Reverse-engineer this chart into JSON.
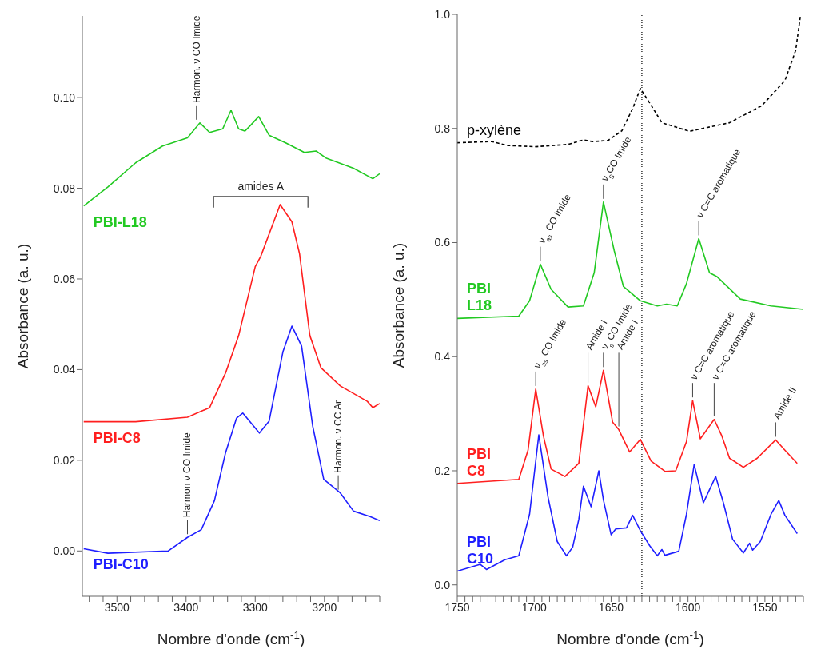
{
  "chart_data": [
    {
      "type": "line",
      "xlabel": "Nombre d'onde (cm$^{-1}$)",
      "ylabel": "Absorbance (a. u.)",
      "xlim": [
        3550,
        3120
      ],
      "ylim": [
        -0.01,
        0.118
      ],
      "marker": "none",
      "xticks": [
        {
          "value": 3540,
          "label": null
        },
        {
          "value": 3520,
          "label": null
        },
        3500,
        {
          "value": 3480,
          "label": null
        },
        {
          "value": 3460,
          "label": null
        },
        {
          "value": 3440,
          "label": null
        },
        {
          "value": 3420,
          "label": null
        },
        3400,
        {
          "value": 3380,
          "label": null
        },
        {
          "value": 3360,
          "label": null
        },
        {
          "value": 3340,
          "label": null
        },
        {
          "value": 3320,
          "label": null
        },
        3300,
        {
          "value": 3280,
          "label": null
        },
        {
          "value": 3260,
          "label": null
        },
        {
          "value": 3240,
          "label": null
        },
        {
          "value": 3220,
          "label": null
        },
        3200,
        {
          "value": 3180,
          "label": null
        },
        {
          "value": 3160,
          "label": null
        },
        {
          "value": 3140,
          "label": null
        },
        {
          "value": 3120,
          "label": null
        }
      ],
      "yticks": [
        {
          "value": 0,
          "label": "0.00"
        },
        {
          "value": 0.02,
          "label": "0.02"
        },
        {
          "value": 0.04,
          "label": "0.04"
        },
        {
          "value": 0.06,
          "label": "0.06"
        },
        {
          "value": 0.08,
          "label": "0.08"
        },
        {
          "value": 0.1,
          "label": "0.10"
        }
      ],
      "series": [
        {
          "name": "PBI-L18",
          "color": "#22c922",
          "x": [
            3548,
            3513,
            3473,
            3434,
            3398,
            3380,
            3366,
            3347,
            3335,
            3324,
            3315,
            3306,
            3295,
            3280,
            3256,
            3229,
            3212,
            3197,
            3158,
            3130,
            3120
          ],
          "values": [
            0.0761,
            0.0803,
            0.0856,
            0.0893,
            0.0911,
            0.0944,
            0.0923,
            0.0931,
            0.0972,
            0.0931,
            0.0926,
            0.094,
            0.0958,
            0.0917,
            0.09,
            0.0879,
            0.0882,
            0.0866,
            0.0844,
            0.0821,
            0.0832
          ]
        },
        {
          "name": "PBI-C8",
          "color": "#ff1f1f",
          "x": [
            3548,
            3473,
            3398,
            3366,
            3343,
            3324,
            3300,
            3292,
            3264,
            3247,
            3236,
            3221,
            3205,
            3177,
            3138,
            3130,
            3120
          ],
          "values": [
            0.0285,
            0.0285,
            0.0295,
            0.0316,
            0.0392,
            0.0475,
            0.0627,
            0.065,
            0.0764,
            0.0726,
            0.0656,
            0.0475,
            0.0404,
            0.0364,
            0.033,
            0.0316,
            0.0325
          ]
        },
        {
          "name": "PBI-C10",
          "color": "#1f1fff",
          "x": [
            3548,
            3513,
            3426,
            3398,
            3378,
            3359,
            3343,
            3327,
            3318,
            3294,
            3280,
            3260,
            3247,
            3233,
            3217,
            3201,
            3177,
            3158,
            3134,
            3120
          ],
          "values": [
            0.0005,
            -0.0005,
            0,
            0.003,
            0.0047,
            0.0111,
            0.0216,
            0.0293,
            0.0304,
            0.026,
            0.0286,
            0.0439,
            0.0496,
            0.0452,
            0.0276,
            0.0158,
            0.0128,
            0.0088,
            0.0076,
            0.0067
          ]
        }
      ],
      "annotations": [
        {
          "text": "Harmon. ν CO Imide",
          "x": 3385,
          "y": 0.0944
        },
        "amides A",
        {
          "text": "Harmon ν CO Imide",
          "x": 3398,
          "y": 0.003
        },
        {
          "text": "Harmon. ν CC Ar",
          "x": 3180,
          "y": 0.0128
        }
      ]
    },
    {
      "type": "line",
      "xlabel": "Nombre d'onde (cm$^{-1}$)",
      "ylabel": "Absorbance (a. u.)",
      "xlim": [
        1750,
        1525
      ],
      "ylim": [
        -0.02,
        1.0
      ],
      "marker": "none",
      "xticks": [
        1750,
        {
          "value": 1745,
          "label": null
        },
        {
          "value": 1740,
          "label": null
        },
        {
          "value": 1735,
          "label": null
        },
        {
          "value": 1730,
          "label": null
        },
        {
          "value": 1725,
          "label": null
        },
        {
          "value": 1720,
          "label": null
        },
        {
          "value": 1715,
          "label": null
        },
        {
          "value": 1710,
          "label": null
        },
        {
          "value": 1705,
          "label": null
        },
        1700,
        {
          "value": 1695,
          "label": null
        },
        {
          "value": 1690,
          "label": null
        },
        {
          "value": 1685,
          "label": null
        },
        {
          "value": 1680,
          "label": null
        },
        {
          "value": 1675,
          "label": null
        },
        {
          "value": 1670,
          "label": null
        },
        {
          "value": 1665,
          "label": null
        },
        {
          "value": 1660,
          "label": null
        },
        {
          "value": 1655,
          "label": null
        },
        1650,
        {
          "value": 1645,
          "label": null
        },
        {
          "value": 1640,
          "label": null
        },
        {
          "value": 1635,
          "label": null
        },
        {
          "value": 1630,
          "label": null
        },
        {
          "value": 1625,
          "label": null
        },
        {
          "value": 1620,
          "label": null
        },
        {
          "value": 1615,
          "label": null
        },
        {
          "value": 1610,
          "label": null
        },
        {
          "value": 1605,
          "label": null
        },
        1600,
        {
          "value": 1595,
          "label": null
        },
        {
          "value": 1590,
          "label": null
        },
        {
          "value": 1585,
          "label": null
        },
        {
          "value": 1580,
          "label": null
        },
        {
          "value": 1575,
          "label": null
        },
        {
          "value": 1570,
          "label": null
        },
        {
          "value": 1565,
          "label": null
        },
        {
          "value": 1560,
          "label": null
        },
        {
          "value": 1555,
          "label": null
        },
        1550,
        {
          "value": 1545,
          "label": null
        },
        {
          "value": 1540,
          "label": null
        },
        {
          "value": 1535,
          "label": null
        },
        {
          "value": 1530,
          "label": null
        },
        {
          "value": 1525,
          "label": null
        }
      ],
      "yticks": [
        {
          "value": 0,
          "label": "0.0"
        },
        {
          "value": 0.2,
          "label": "0.2"
        },
        {
          "value": 0.4,
          "label": "0.4"
        },
        {
          "value": 0.6,
          "label": "0.6"
        },
        {
          "value": 0.8,
          "label": "0.8"
        },
        {
          "value": 1,
          "label": "1.0"
        }
      ],
      "series": [
        {
          "name": "p-xylène",
          "color": "#000000",
          "line_style": "dashed",
          "x": [
            1750,
            1727.5,
            1717,
            1699,
            1678,
            1668,
            1662,
            1652,
            1643,
            1636,
            1631,
            1625,
            1617,
            1599,
            1573,
            1552,
            1537,
            1530,
            1527
          ],
          "values": [
            0.775,
            0.777,
            0.77,
            0.768,
            0.772,
            0.78,
            0.777,
            0.779,
            0.796,
            0.835,
            0.87,
            0.845,
            0.81,
            0.795,
            0.81,
            0.84,
            0.884,
            0.937,
            0.996
          ]
        },
        {
          "name": "PBI L18",
          "color": "#22c922",
          "x": [
            1750,
            1710,
            1703,
            1696,
            1689,
            1678,
            1668,
            1661,
            1655,
            1648,
            1642,
            1631,
            1620,
            1614,
            1607,
            1601,
            1593,
            1586,
            1581,
            1566,
            1546,
            1525
          ],
          "values": [
            0.467,
            0.471,
            0.498,
            0.562,
            0.518,
            0.487,
            0.489,
            0.547,
            0.671,
            0.586,
            0.523,
            0.498,
            0.489,
            0.492,
            0.489,
            0.528,
            0.607,
            0.547,
            0.54,
            0.501,
            0.489,
            0.483
          ]
        },
        {
          "name": "PBI C8",
          "color": "#ff1f1f",
          "x": [
            1750,
            1710,
            1704,
            1699,
            1694,
            1689,
            1680,
            1671,
            1665,
            1660,
            1655,
            1649,
            1645,
            1638,
            1631,
            1624,
            1615,
            1608,
            1601,
            1597,
            1592,
            1583,
            1578,
            1573,
            1564,
            1555,
            1543,
            1537,
            1529
          ],
          "values": [
            0.178,
            0.185,
            0.236,
            0.343,
            0.261,
            0.203,
            0.19,
            0.213,
            0.349,
            0.312,
            0.376,
            0.285,
            0.272,
            0.233,
            0.255,
            0.217,
            0.199,
            0.2,
            0.251,
            0.323,
            0.256,
            0.29,
            0.261,
            0.222,
            0.206,
            0.222,
            0.254,
            0.236,
            0.213
          ]
        },
        {
          "name": "PBI C10",
          "color": "#1f1fff",
          "x": [
            1750,
            1735,
            1731,
            1719,
            1710,
            1703,
            1697,
            1691,
            1685,
            1679,
            1675,
            1671,
            1668,
            1663,
            1658,
            1655,
            1650,
            1647,
            1640,
            1636,
            1631,
            1625,
            1620,
            1617,
            1615,
            1606,
            1601,
            1596,
            1590,
            1582,
            1577,
            1571,
            1564,
            1560,
            1558,
            1553,
            1546,
            1541,
            1537,
            1529
          ],
          "values": [
            0.024,
            0.036,
            0.027,
            0.044,
            0.051,
            0.124,
            0.263,
            0.154,
            0.076,
            0.051,
            0.066,
            0.115,
            0.173,
            0.137,
            0.2,
            0.149,
            0.088,
            0.098,
            0.1,
            0.122,
            0.095,
            0.069,
            0.051,
            0.062,
            0.052,
            0.059,
            0.124,
            0.211,
            0.144,
            0.19,
            0.144,
            0.08,
            0.056,
            0.073,
            0.061,
            0.076,
            0.124,
            0.148,
            0.122,
            0.09
          ]
        }
      ],
      "ref_lines": [
        {
          "axis": "x",
          "value": 1630,
          "color": "#000000",
          "line_style": "dotted"
        }
      ],
      "annotations": [
        {
          "text": "ν$_{as}$ CO Imide",
          "x": 1696,
          "y": 0.562
        },
        {
          "text": "ν$_{S}$CO Imide",
          "x": 1655,
          "y": 0.671
        },
        {
          "text": "ν C=C aromatique",
          "x": 1593,
          "y": 0.607
        },
        {
          "text": "ν$_{as}$ CO Imide",
          "x": 1699,
          "y": 0.343
        },
        {
          "text": "Amide I",
          "x": 1665,
          "y": 0.349
        },
        {
          "text": "ν$_{s}$ CO Imide",
          "x": 1655,
          "y": 0.376
        },
        {
          "text": "Amide I",
          "x": 1645,
          "y": 0.272
        },
        {
          "text": "ν C=C aromatique",
          "x": 1597,
          "y": 0.323
        },
        {
          "text": "ν C=C aromatique",
          "x": 1583,
          "y": 0.29
        },
        {
          "text": "Amide II",
          "x": 1543,
          "y": 0.254
        }
      ]
    }
  ]
}
